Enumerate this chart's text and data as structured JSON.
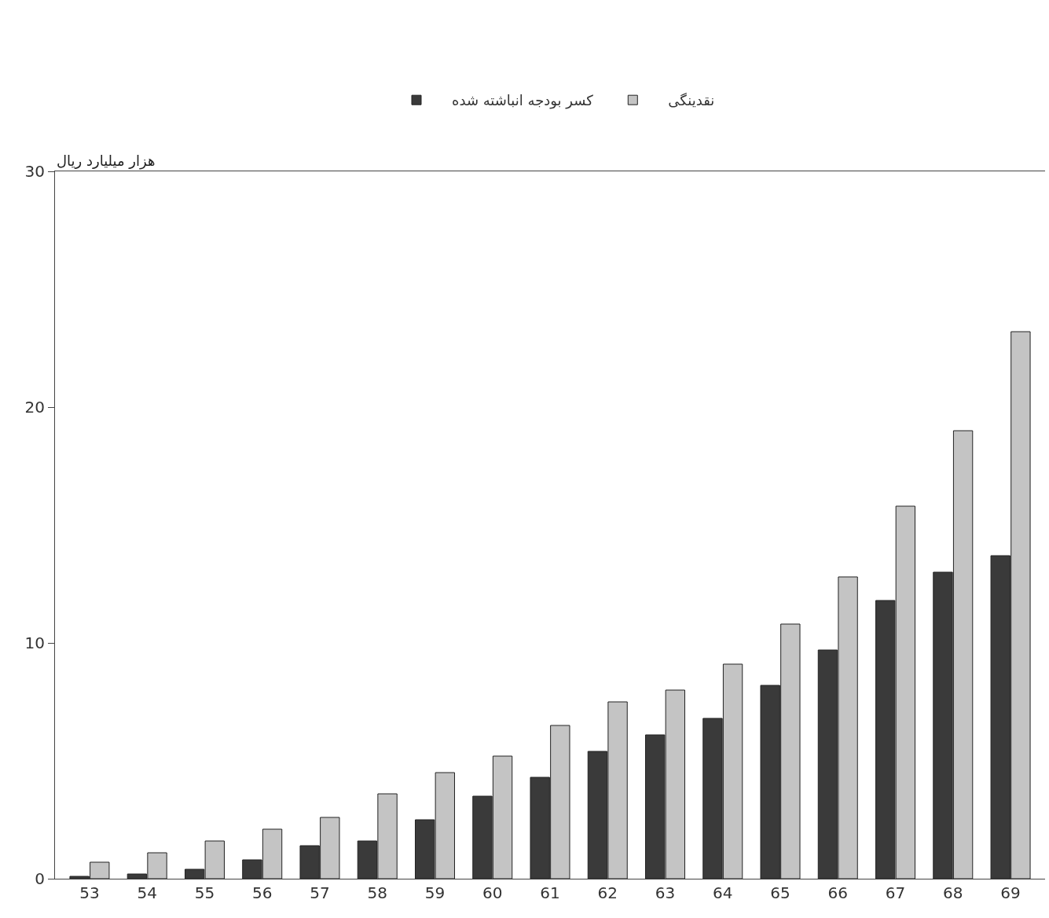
{
  "chart_data": {
    "type": "bar",
    "ylabel": "هزار میلیارد ریال",
    "categories": [
      "53",
      "54",
      "55",
      "56",
      "57",
      "58",
      "59",
      "60",
      "61",
      "62",
      "63",
      "64",
      "65",
      "66",
      "67",
      "68",
      "69"
    ],
    "series": [
      {
        "name": "کسر بودجه انباشته شده",
        "color": "#3a3a3a",
        "values": [
          0.1,
          0.2,
          0.4,
          0.8,
          1.4,
          1.6,
          2.5,
          3.5,
          4.3,
          5.4,
          6.1,
          6.8,
          8.2,
          9.7,
          11.8,
          13.0,
          13.7
        ]
      },
      {
        "name": "نقدینگی",
        "color": "#c4c4c4",
        "values": [
          0.7,
          1.1,
          1.6,
          2.1,
          2.6,
          3.6,
          4.5,
          5.2,
          6.5,
          7.5,
          8.0,
          9.1,
          10.8,
          12.8,
          15.8,
          19.0,
          23.2
        ]
      }
    ],
    "ylim": [
      0,
      30
    ],
    "yticks": [
      0,
      10,
      20,
      30
    ],
    "grid": false,
    "legend": "top"
  }
}
